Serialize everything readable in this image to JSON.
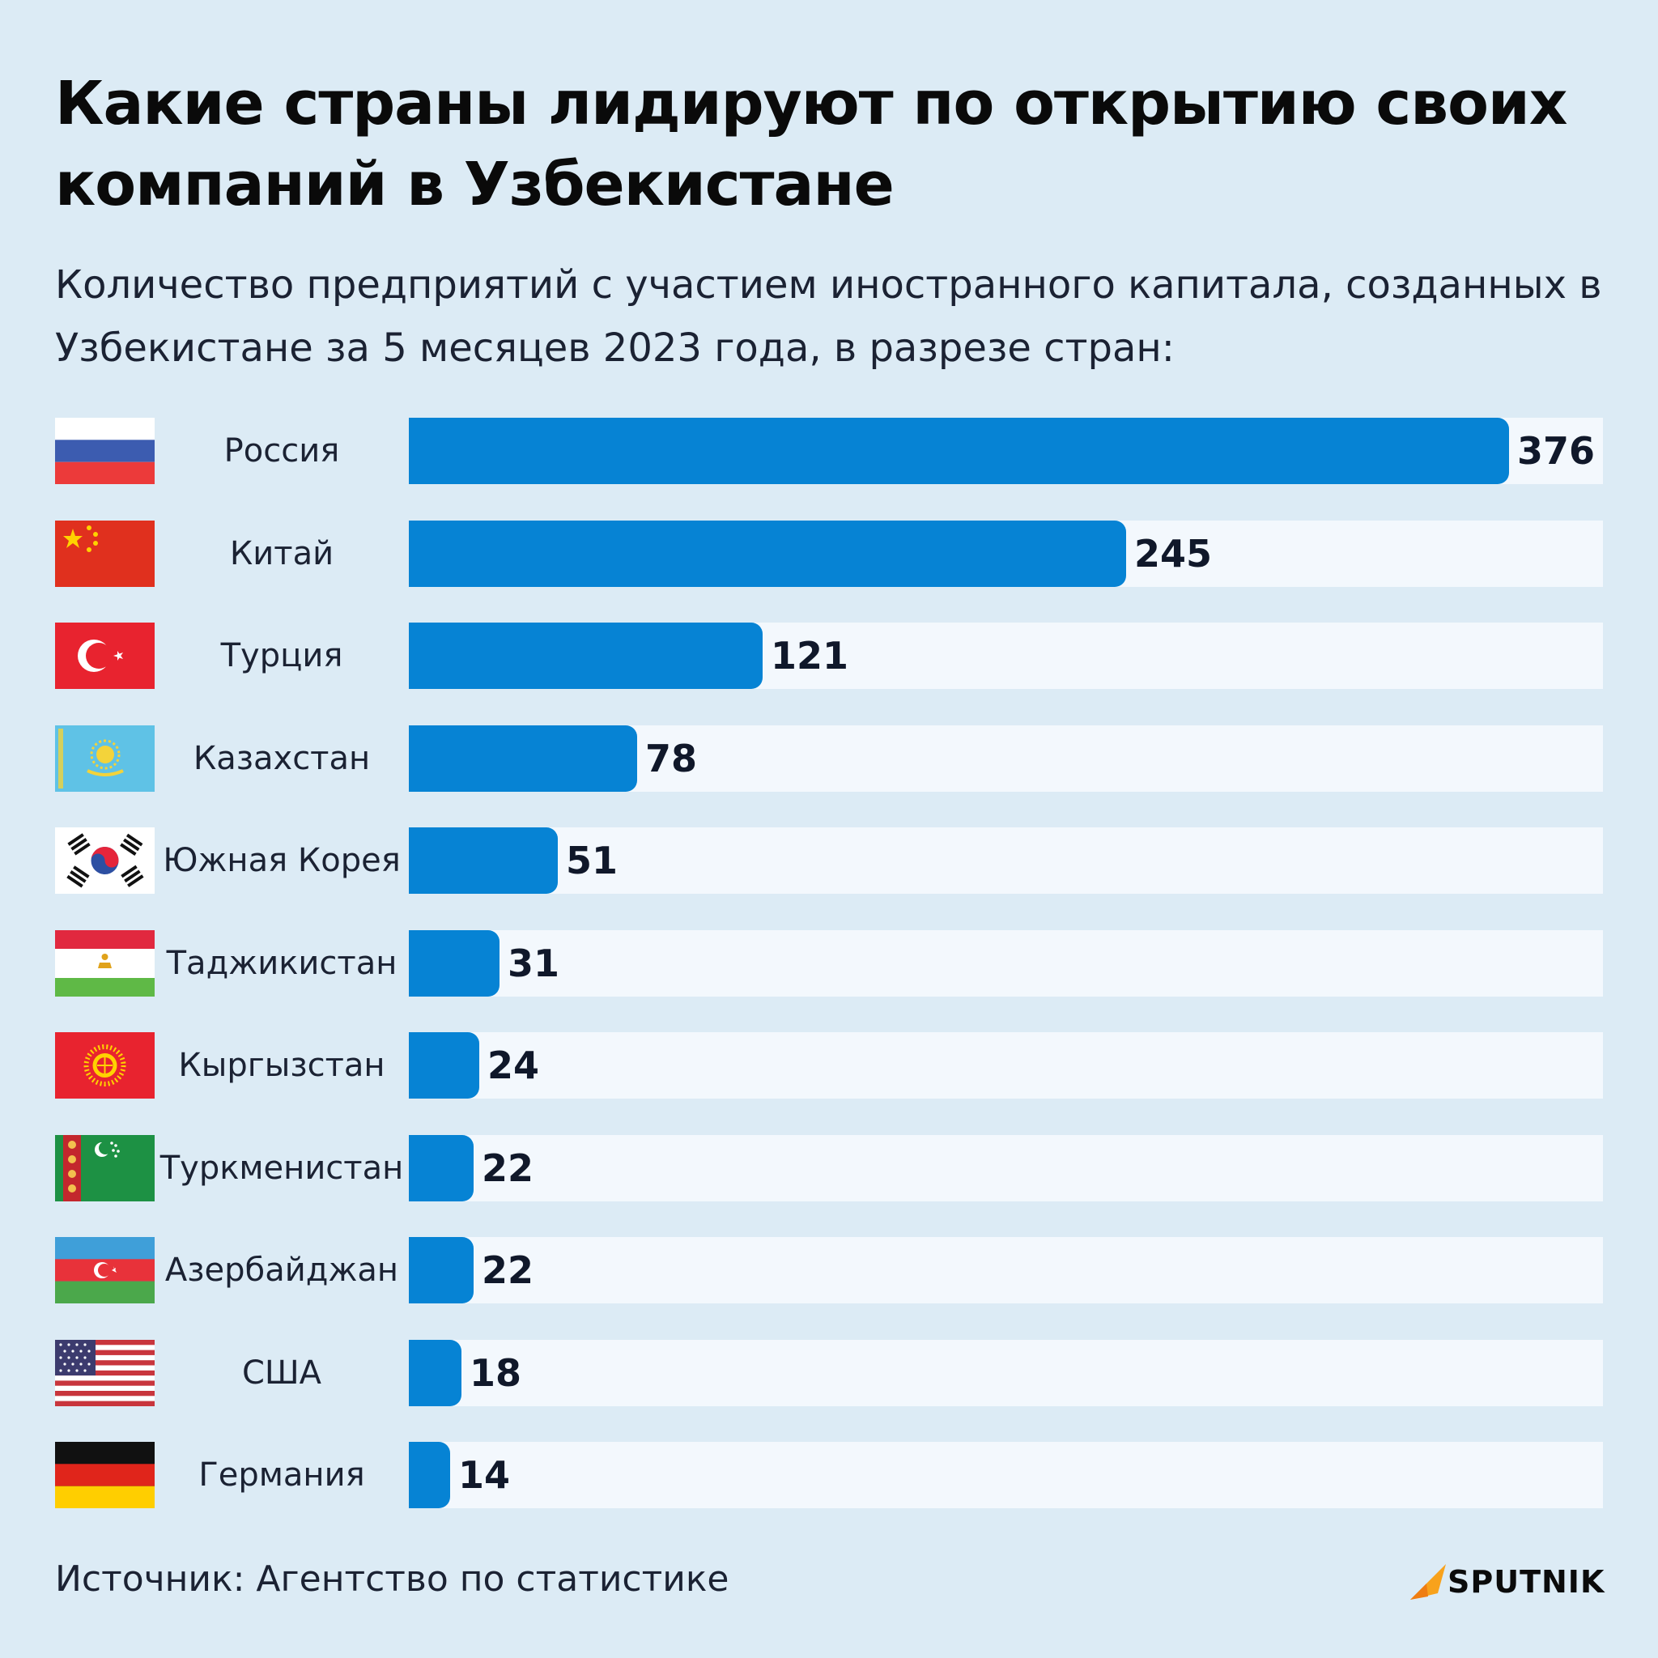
{
  "title": "Какие страны лидируют по открытию своих компаний в Узбекистане",
  "subtitle": "Количество предприятий с участием иностранного капитала, созданных в Узбекистане за 5 месяцев 2023 года, в разрезе стран:",
  "source": "Источник: Агентство по статистике",
  "logo_text": "SPUTNIK",
  "colors": {
    "bar": "#0683d4",
    "track": "#f3f8fd",
    "background": "#dcebf5",
    "logo_accent": "#f8a21c"
  },
  "chart_data": {
    "type": "bar",
    "orientation": "horizontal",
    "title": "Какие страны лидируют по открытию своих компаний в Узбекистане",
    "subtitle": "Количество предприятий с участием иностранного капитала, созданных в Узбекистане за 5 месяцев 2023 года, в разрезе стран:",
    "categories": [
      "Россия",
      "Китай",
      "Турция",
      "Казахстан",
      "Южная Корея",
      "Таджикистан",
      "Кыргызстан",
      "Туркменистан",
      "Азербайджан",
      "США",
      "Германия"
    ],
    "values": [
      376,
      245,
      121,
      78,
      51,
      31,
      24,
      22,
      22,
      18,
      14
    ],
    "value_labels": [
      "376",
      "245",
      "121",
      "78",
      "51",
      "31",
      "24",
      "22",
      "22",
      "18",
      "14"
    ],
    "flags": [
      "russia-flag-icon",
      "china-flag-icon",
      "turkey-flag-icon",
      "kazakhstan-flag-icon",
      "south-korea-flag-icon",
      "tajikistan-flag-icon",
      "kyrgyzstan-flag-icon",
      "turkmenistan-flag-icon",
      "azerbaijan-flag-icon",
      "usa-flag-icon",
      "germany-flag-icon"
    ],
    "xlim": [
      0,
      376
    ],
    "grid": false,
    "legend": "none"
  }
}
